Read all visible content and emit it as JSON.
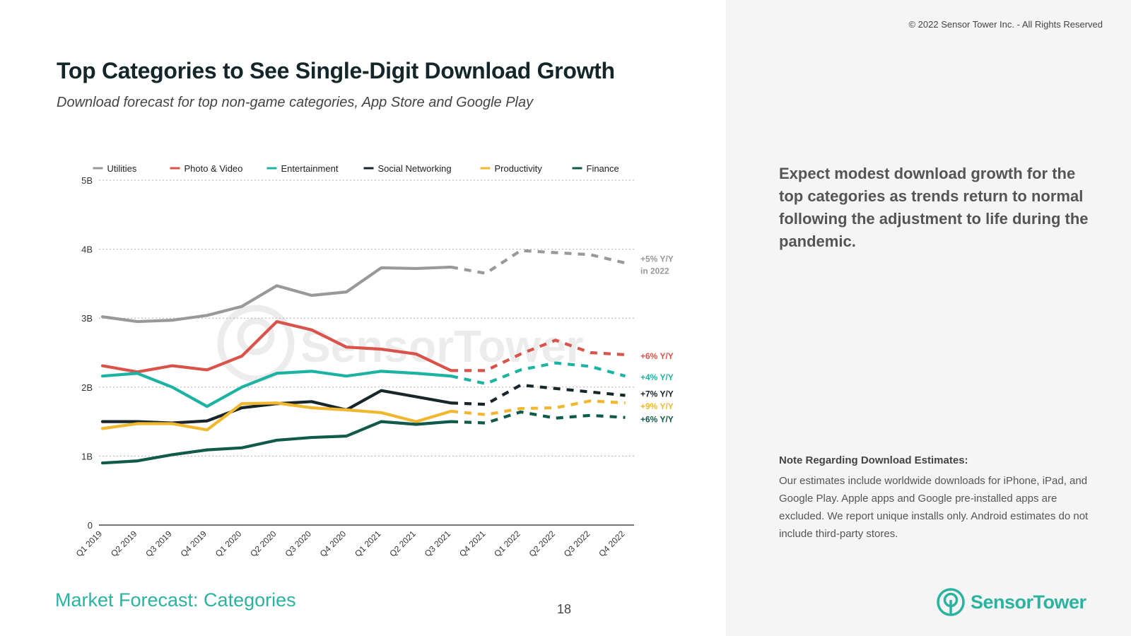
{
  "copyright": "© 2022 Sensor Tower Inc. - All Rights Reserved",
  "title": "Top Categories to See Single-Digit Download Growth",
  "subtitle": "Download forecast for top non-game categories, App Store and Google Play",
  "insight": "Expect modest download growth for the top categories as trends return to normal following the adjustment to life during the pandemic.",
  "note": {
    "title": "Note Regarding Download Estimates:",
    "text": "Our estimates include worldwide downloads for iPhone, iPad, and Google Play. Apple apps and Google pre-installed apps are excluded. We report unique installs only. Android estimates do not include third-party stores."
  },
  "footer": {
    "section": "Market Forecast: Categories",
    "page": "18"
  },
  "logo": {
    "text": "SensorTower",
    "watermark": "SensorTower"
  },
  "colors": {
    "accent": "#2bb3a0"
  },
  "chart_data": {
    "type": "line",
    "title": "Top Categories to See Single-Digit Download Growth",
    "ylabel": "",
    "xlabel": "",
    "ylim": [
      0,
      5
    ],
    "yticks": [
      {
        "v": 0,
        "label": "0"
      },
      {
        "v": 1,
        "label": "1B"
      },
      {
        "v": 2,
        "label": "2B"
      },
      {
        "v": 3,
        "label": "3B"
      },
      {
        "v": 4,
        "label": "4B"
      },
      {
        "v": 5,
        "label": "5B"
      }
    ],
    "categories": [
      "Q1 2019",
      "Q2 2019",
      "Q3 2019",
      "Q4 2019",
      "Q1 2020",
      "Q2 2020",
      "Q3 2020",
      "Q4 2020",
      "Q1 2021",
      "Q2 2021",
      "Q3 2021",
      "Q4 2021",
      "Q1 2022",
      "Q2 2022",
      "Q3 2022",
      "Q4 2022"
    ],
    "forecast_start_index": 10,
    "series": [
      {
        "name": "Utilities",
        "color": "#999999",
        "values": [
          3.02,
          2.95,
          2.97,
          3.04,
          3.17,
          3.47,
          3.33,
          3.38,
          3.73,
          3.72,
          3.74,
          3.65,
          3.98,
          3.95,
          3.92,
          3.8
        ],
        "label_lines": [
          "+5% Y/Y",
          "in 2022"
        ],
        "label_value": 3.87
      },
      {
        "name": "Photo & Video",
        "color": "#d9534a",
        "values": [
          2.31,
          2.22,
          2.31,
          2.25,
          2.45,
          2.95,
          2.83,
          2.58,
          2.55,
          2.48,
          2.24,
          2.24,
          2.48,
          2.68,
          2.5,
          2.47
        ],
        "label_lines": [
          "+6% Y/Y"
        ],
        "label_value": 2.46
      },
      {
        "name": "Entertainment",
        "color": "#1db3a3",
        "values": [
          2.16,
          2.2,
          2.0,
          1.72,
          2.0,
          2.2,
          2.23,
          2.16,
          2.23,
          2.2,
          2.16,
          2.05,
          2.25,
          2.35,
          2.3,
          2.16
        ],
        "label_lines": [
          "+4% Y/Y"
        ],
        "label_value": 2.15
      },
      {
        "name": "Social Networking",
        "color": "#17262a",
        "values": [
          1.5,
          1.5,
          1.48,
          1.51,
          1.7,
          1.76,
          1.79,
          1.67,
          1.95,
          1.86,
          1.77,
          1.75,
          2.03,
          1.98,
          1.93,
          1.88
        ],
        "label_lines": [
          "+7% Y/Y"
        ],
        "label_value": 1.91
      },
      {
        "name": "Productivity",
        "color": "#f0b72f",
        "values": [
          1.4,
          1.47,
          1.47,
          1.38,
          1.76,
          1.77,
          1.7,
          1.67,
          1.63,
          1.5,
          1.65,
          1.6,
          1.69,
          1.7,
          1.8,
          1.77
        ],
        "label_lines": [
          "+9% Y/Y"
        ],
        "label_value": 1.73
      },
      {
        "name": "Finance",
        "color": "#0f5a4a",
        "values": [
          0.9,
          0.93,
          1.02,
          1.09,
          1.12,
          1.23,
          1.27,
          1.29,
          1.5,
          1.46,
          1.5,
          1.48,
          1.64,
          1.55,
          1.59,
          1.56
        ],
        "label_lines": [
          "+6% Y/Y"
        ],
        "label_value": 1.54
      }
    ]
  }
}
